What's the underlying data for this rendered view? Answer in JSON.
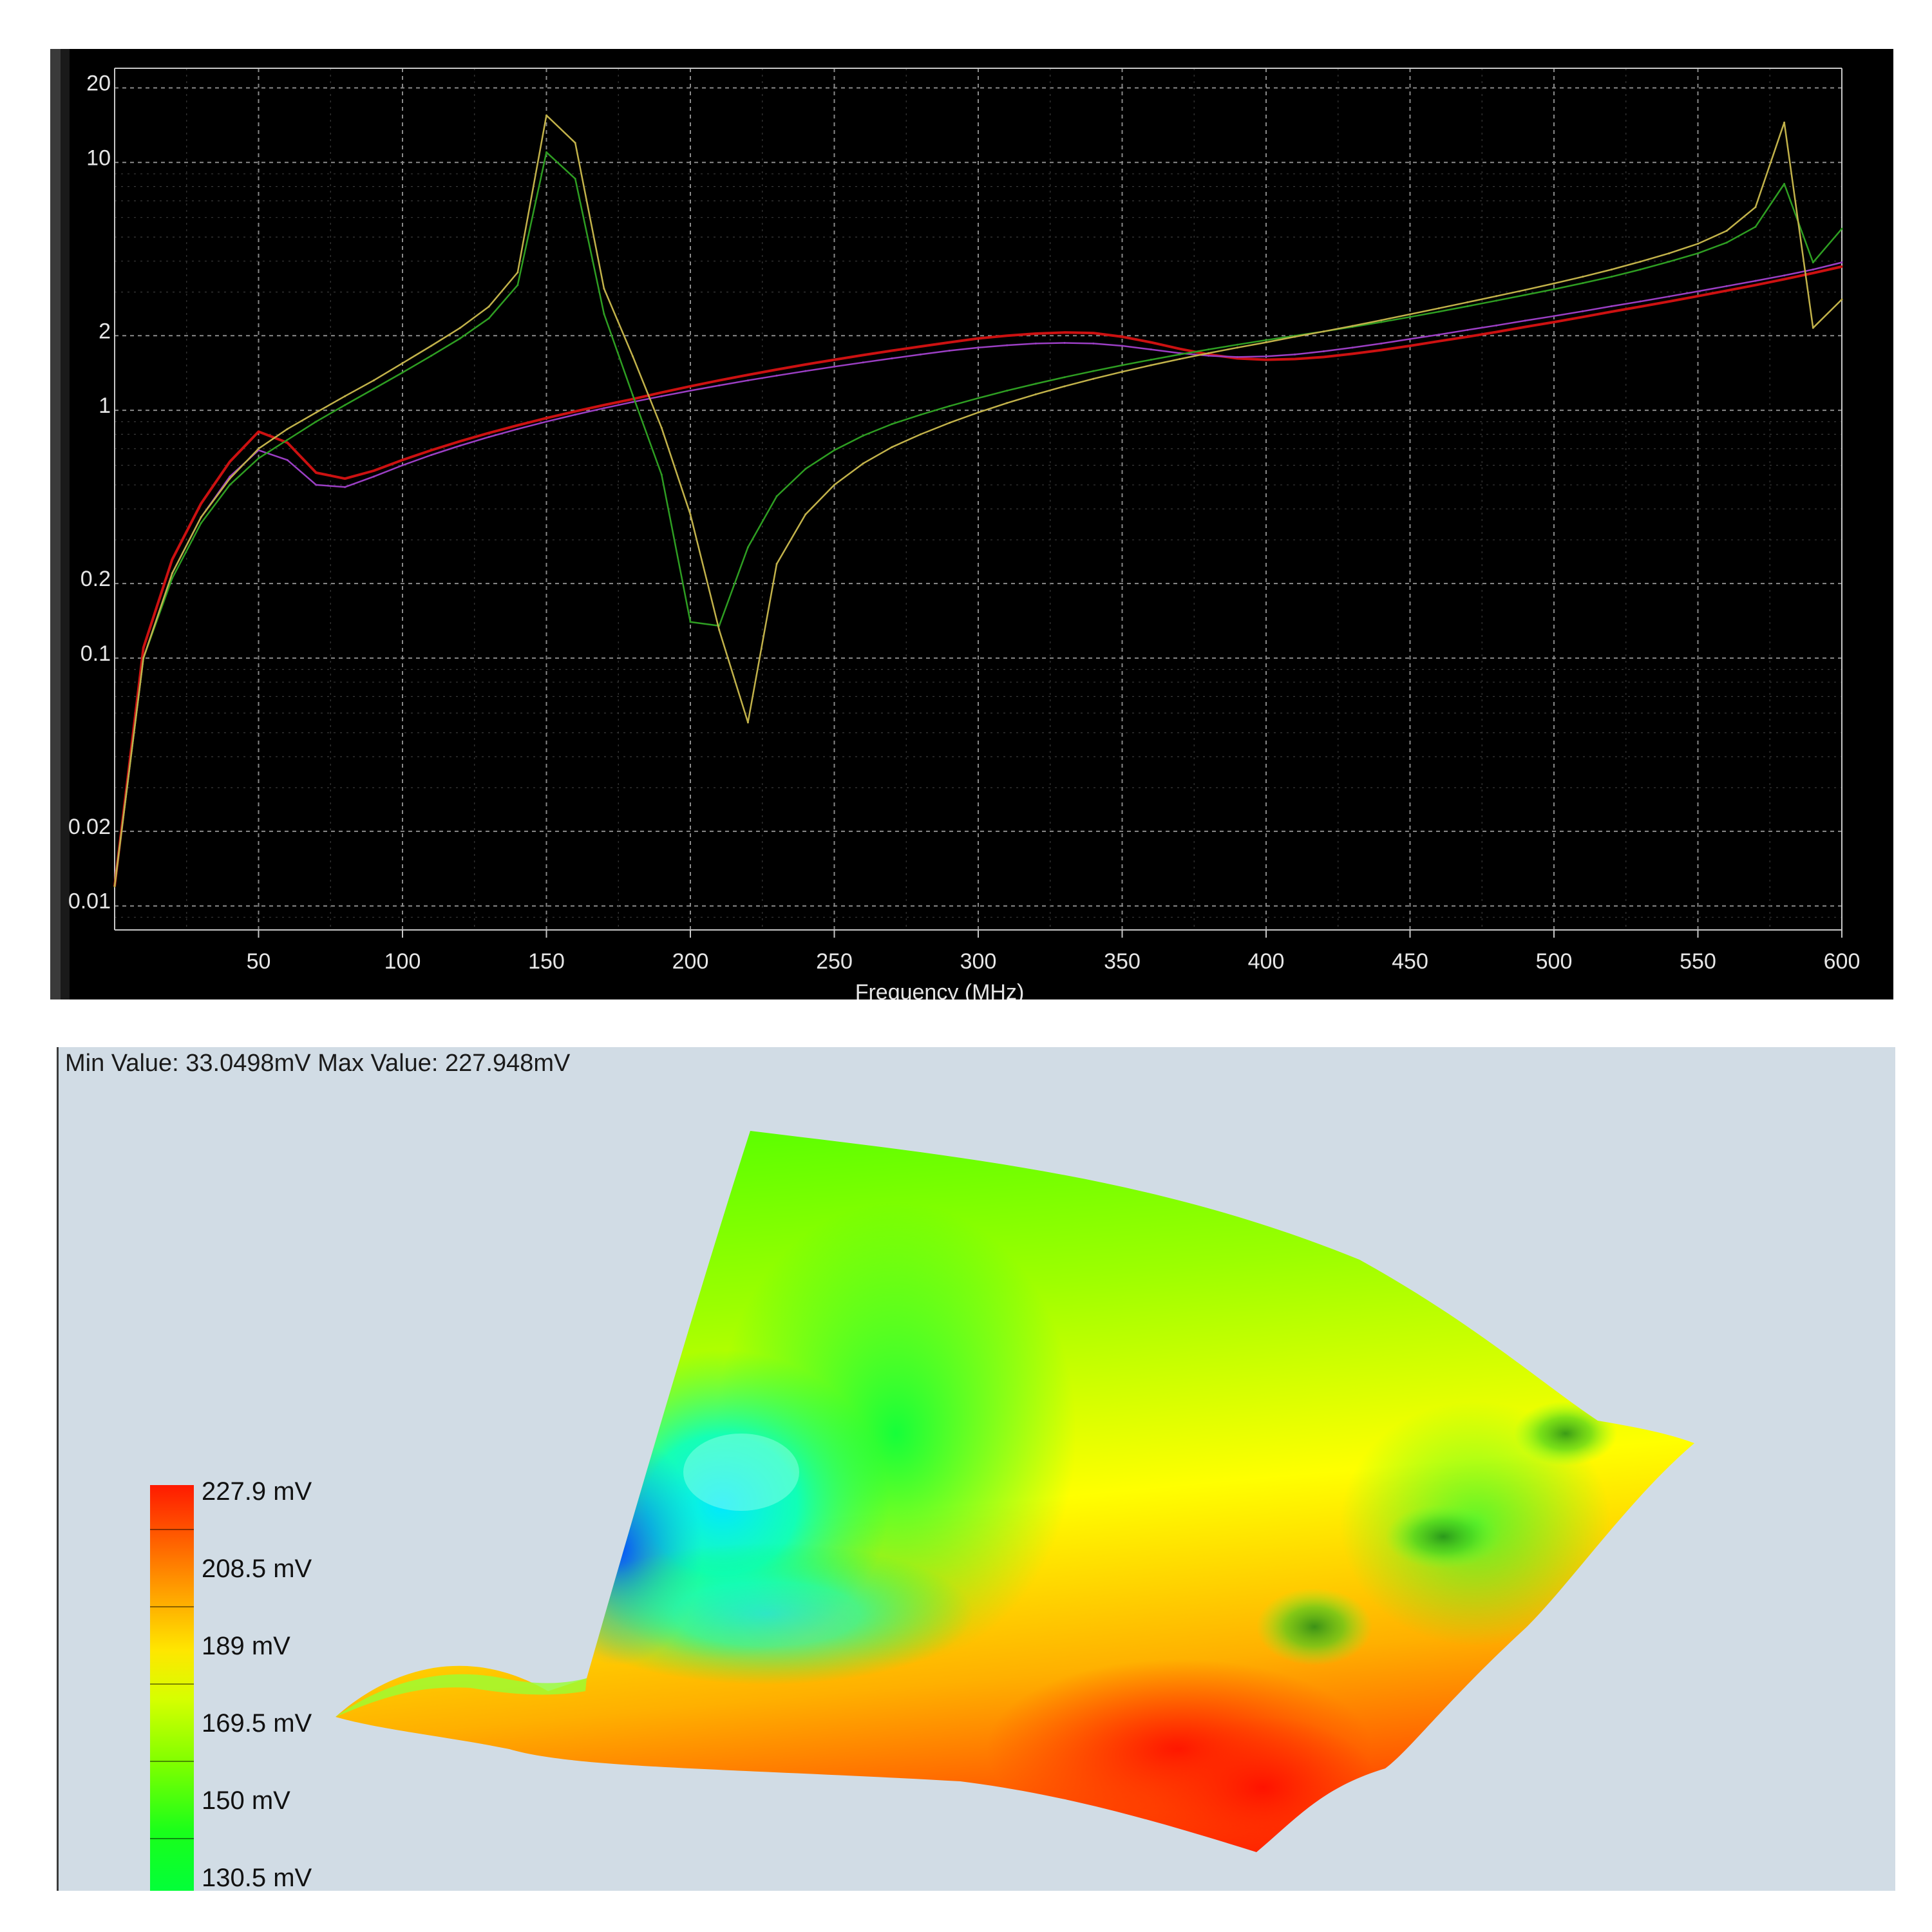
{
  "chart_data": {
    "type": "line",
    "title": "",
    "xlabel": "Frequency (MHz)",
    "ylabel": "",
    "x_scale": "linear",
    "y_scale": "log",
    "xlim": [
      0,
      600
    ],
    "ylim": [
      0.008,
      24
    ],
    "grid": true,
    "x_ticks": [
      "50",
      "100",
      "150",
      "200",
      "250",
      "300",
      "350",
      "400",
      "450",
      "500",
      "550",
      "600"
    ],
    "y_ticks": [
      "20",
      "10",
      "2",
      "1",
      "0.2",
      "0.1",
      "0.02",
      "0.01"
    ],
    "x": [
      0,
      10,
      20,
      30,
      40,
      50,
      60,
      70,
      80,
      90,
      100,
      110,
      120,
      130,
      140,
      150,
      160,
      170,
      180,
      190,
      200,
      210,
      220,
      230,
      240,
      250,
      260,
      270,
      280,
      290,
      300,
      310,
      320,
      330,
      340,
      350,
      360,
      370,
      380,
      390,
      400,
      410,
      420,
      430,
      440,
      450,
      460,
      470,
      480,
      490,
      500,
      510,
      520,
      530,
      540,
      550,
      560,
      570,
      580,
      590,
      600
    ],
    "series": [
      {
        "color": "#cc1111",
        "values": [
          0.012,
          0.11,
          0.25,
          0.42,
          0.62,
          0.82,
          0.74,
          0.56,
          0.53,
          0.57,
          0.63,
          0.69,
          0.75,
          0.81,
          0.87,
          0.93,
          0.99,
          1.05,
          1.11,
          1.18,
          1.25,
          1.32,
          1.39,
          1.46,
          1.53,
          1.6,
          1.67,
          1.74,
          1.81,
          1.88,
          1.95,
          2.0,
          2.04,
          2.06,
          2.05,
          1.98,
          1.88,
          1.77,
          1.68,
          1.62,
          1.6,
          1.61,
          1.64,
          1.69,
          1.75,
          1.82,
          1.9,
          1.98,
          2.07,
          2.17,
          2.27,
          2.38,
          2.5,
          2.62,
          2.75,
          2.89,
          3.04,
          3.2,
          3.38,
          3.58,
          3.8
        ]
      },
      {
        "color": "#9b3fc4",
        "values": [
          0.012,
          0.1,
          0.22,
          0.37,
          0.54,
          0.69,
          0.63,
          0.5,
          0.49,
          0.54,
          0.6,
          0.66,
          0.72,
          0.78,
          0.84,
          0.9,
          0.96,
          1.02,
          1.08,
          1.14,
          1.2,
          1.26,
          1.32,
          1.38,
          1.44,
          1.5,
          1.56,
          1.62,
          1.68,
          1.74,
          1.79,
          1.83,
          1.86,
          1.87,
          1.86,
          1.82,
          1.76,
          1.7,
          1.66,
          1.64,
          1.65,
          1.68,
          1.73,
          1.79,
          1.86,
          1.94,
          2.02,
          2.11,
          2.2,
          2.3,
          2.4,
          2.51,
          2.63,
          2.75,
          2.88,
          3.02,
          3.17,
          3.33,
          3.5,
          3.7,
          3.95
        ]
      },
      {
        "color": "#2e9e22",
        "values": [
          0.012,
          0.1,
          0.21,
          0.35,
          0.5,
          0.64,
          0.76,
          0.9,
          1.05,
          1.22,
          1.42,
          1.66,
          1.95,
          2.35,
          3.2,
          11.0,
          8.6,
          2.45,
          1.15,
          0.55,
          0.14,
          0.135,
          0.28,
          0.45,
          0.58,
          0.69,
          0.79,
          0.88,
          0.96,
          1.04,
          1.12,
          1.2,
          1.28,
          1.36,
          1.44,
          1.52,
          1.6,
          1.68,
          1.76,
          1.84,
          1.92,
          2.0,
          2.08,
          2.17,
          2.27,
          2.38,
          2.5,
          2.63,
          2.77,
          2.92,
          3.08,
          3.26,
          3.46,
          3.7,
          3.98,
          4.3,
          4.75,
          5.5,
          8.2,
          3.95,
          5.4
        ]
      },
      {
        "color": "#c2b24a",
        "values": [
          0.012,
          0.1,
          0.22,
          0.37,
          0.53,
          0.7,
          0.84,
          0.98,
          1.14,
          1.32,
          1.55,
          1.82,
          2.15,
          2.62,
          3.6,
          15.5,
          12.0,
          3.1,
          1.65,
          0.85,
          0.38,
          0.13,
          0.055,
          0.24,
          0.38,
          0.5,
          0.61,
          0.71,
          0.8,
          0.89,
          0.98,
          1.07,
          1.16,
          1.25,
          1.34,
          1.43,
          1.52,
          1.61,
          1.7,
          1.79,
          1.88,
          1.98,
          2.08,
          2.19,
          2.31,
          2.44,
          2.58,
          2.73,
          2.89,
          3.06,
          3.25,
          3.46,
          3.7,
          3.98,
          4.3,
          4.7,
          5.3,
          6.6,
          14.5,
          2.15,
          2.8
        ]
      }
    ]
  },
  "simulation": {
    "min_max_text": "Min Value: 33.0498mV Max Value: 227.948mV",
    "colorbar_labels": [
      "227.9 mV",
      "208.5 mV",
      "189 mV",
      "169.5 mV",
      "150 mV",
      "130.5 mV"
    ]
  }
}
